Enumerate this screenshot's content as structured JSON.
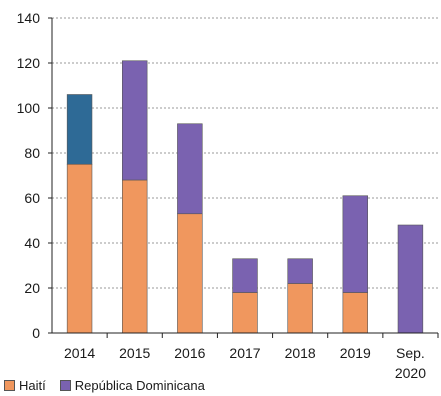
{
  "chart_data": {
    "type": "bar",
    "stacked": true,
    "categories": [
      "2014",
      "2015",
      "2016",
      "2017",
      "2018",
      "2019",
      "Sep.\n2020"
    ],
    "series": [
      {
        "name": "Haití",
        "color": "#f0975e",
        "values": [
          75,
          68,
          53,
          18,
          22,
          18,
          0
        ]
      },
      {
        "name": "República Dominicana",
        "color": "#7a62b0",
        "values": [
          31,
          53,
          40,
          15,
          11,
          43,
          48
        ]
      }
    ],
    "highlight": {
      "category": "2014",
      "series": "República Dominicana",
      "color": "#2e6a96"
    },
    "yticks": [
      0,
      20,
      40,
      60,
      80,
      100,
      120,
      140
    ],
    "ylim": [
      0,
      140
    ],
    "grid": true,
    "legend_position": "bottom-left"
  }
}
